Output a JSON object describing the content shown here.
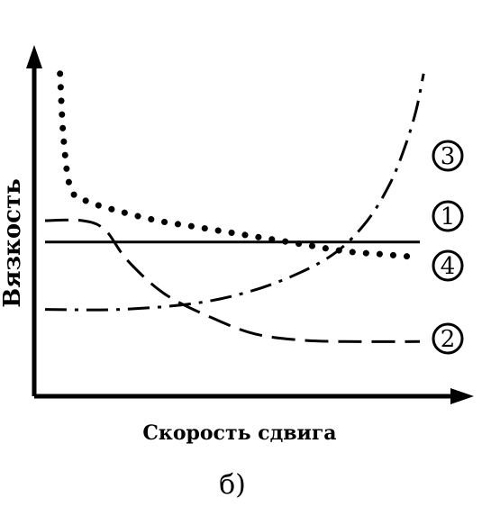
{
  "chart_data": {
    "type": "line",
    "xlabel": "Скорость сдвига",
    "ylabel": "Вязкость",
    "caption": "б)",
    "xlim": [
      0,
      10
    ],
    "ylim": [
      0,
      10
    ],
    "grid": false,
    "series": [
      {
        "name": "1",
        "style": "solid",
        "x": [
          0,
          10
        ],
        "y": [
          4.3,
          4.3
        ]
      },
      {
        "name": "2",
        "style": "dashed",
        "x": [
          0,
          1.0,
          1.6,
          2.2,
          3.2,
          4.5,
          5.6,
          6.8,
          8.0,
          10
        ],
        "y": [
          5.0,
          5.0,
          4.7,
          3.7,
          2.6,
          1.8,
          1.3,
          1.1,
          1.05,
          1.05
        ]
      },
      {
        "name": "3",
        "style": "dash-dot",
        "x": [
          0,
          2.0,
          4.0,
          5.5,
          6.8,
          7.8,
          8.6,
          9.2,
          9.6,
          9.9,
          10.1
        ],
        "y": [
          2.1,
          2.1,
          2.3,
          2.7,
          3.3,
          4.0,
          5.0,
          6.2,
          7.4,
          8.6,
          9.8
        ]
      },
      {
        "name": "4",
        "style": "dotted",
        "x": [
          0.4,
          0.5,
          0.7,
          1.2,
          2.0,
          3.0,
          4.0,
          5.0,
          6.0,
          7.0,
          8.0,
          9.0,
          10.0
        ],
        "y": [
          9.8,
          7.6,
          6.0,
          5.6,
          5.3,
          5.0,
          4.8,
          4.6,
          4.4,
          4.2,
          4.0,
          3.9,
          3.8
        ]
      }
    ]
  }
}
